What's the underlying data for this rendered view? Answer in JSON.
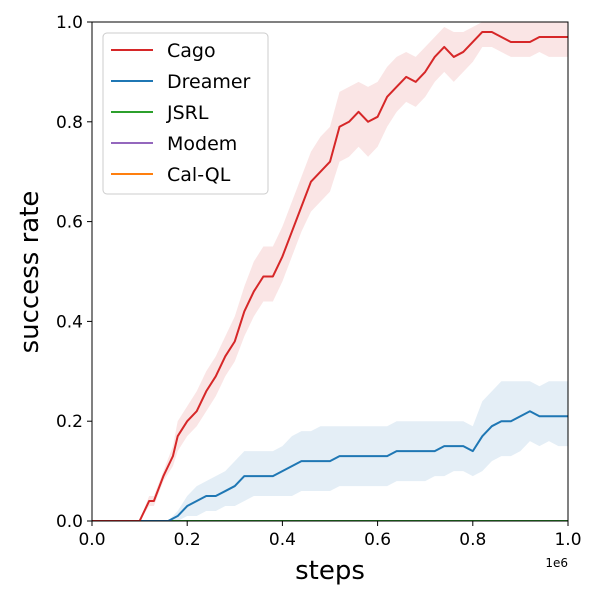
{
  "chart_data": {
    "type": "line",
    "xlabel": "steps",
    "ylabel": "success rate",
    "x_offset_label": "1e6",
    "xlim": [
      0,
      1.0
    ],
    "ylim": [
      0,
      1.0
    ],
    "xticks": [
      0.0,
      0.2,
      0.4,
      0.6,
      0.8,
      1.0
    ],
    "xtick_labels": [
      "0.0",
      "0.2",
      "0.4",
      "0.6",
      "0.8",
      "1.0"
    ],
    "yticks": [
      0.0,
      0.2,
      0.4,
      0.6,
      0.8,
      1.0
    ],
    "ytick_labels": [
      "0.0",
      "0.2",
      "0.4",
      "0.6",
      "0.8",
      "1.0"
    ],
    "grid": false,
    "legend_position": "top-left",
    "series": [
      {
        "name": "Cago",
        "color": "#d62728",
        "x": [
          0,
          0.09,
          0.1,
          0.12,
          0.13,
          0.15,
          0.17,
          0.18,
          0.2,
          0.22,
          0.24,
          0.26,
          0.28,
          0.3,
          0.32,
          0.34,
          0.36,
          0.38,
          0.4,
          0.42,
          0.44,
          0.46,
          0.48,
          0.5,
          0.52,
          0.54,
          0.56,
          0.58,
          0.6,
          0.62,
          0.64,
          0.66,
          0.68,
          0.7,
          0.72,
          0.74,
          0.76,
          0.78,
          0.8,
          0.82,
          0.84,
          0.86,
          0.88,
          0.9,
          0.92,
          0.94,
          0.96,
          0.98,
          1.0
        ],
        "values": [
          0,
          0,
          0,
          0.04,
          0.04,
          0.09,
          0.13,
          0.17,
          0.2,
          0.22,
          0.26,
          0.29,
          0.33,
          0.36,
          0.42,
          0.46,
          0.49,
          0.49,
          0.53,
          0.58,
          0.63,
          0.68,
          0.7,
          0.72,
          0.79,
          0.8,
          0.82,
          0.8,
          0.81,
          0.85,
          0.87,
          0.89,
          0.88,
          0.9,
          0.93,
          0.95,
          0.93,
          0.94,
          0.96,
          0.98,
          0.98,
          0.97,
          0.96,
          0.96,
          0.96,
          0.97,
          0.97,
          0.97,
          0.97
        ],
        "lower": [
          0,
          0,
          0,
          0.03,
          0.03,
          0.08,
          0.11,
          0.14,
          0.17,
          0.19,
          0.22,
          0.25,
          0.29,
          0.32,
          0.37,
          0.41,
          0.44,
          0.44,
          0.48,
          0.53,
          0.58,
          0.62,
          0.64,
          0.66,
          0.72,
          0.73,
          0.75,
          0.73,
          0.75,
          0.79,
          0.82,
          0.84,
          0.83,
          0.85,
          0.88,
          0.9,
          0.88,
          0.9,
          0.92,
          0.95,
          0.95,
          0.94,
          0.93,
          0.93,
          0.93,
          0.94,
          0.93,
          0.93,
          0.93
        ],
        "upper": [
          0,
          0,
          0,
          0.05,
          0.05,
          0.1,
          0.15,
          0.2,
          0.23,
          0.26,
          0.3,
          0.33,
          0.37,
          0.41,
          0.47,
          0.52,
          0.55,
          0.55,
          0.59,
          0.64,
          0.69,
          0.74,
          0.77,
          0.79,
          0.86,
          0.87,
          0.88,
          0.87,
          0.88,
          0.91,
          0.93,
          0.94,
          0.93,
          0.95,
          0.97,
          0.99,
          0.98,
          0.98,
          0.99,
          1.0,
          1.0,
          1.0,
          1.0,
          1.0,
          1.0,
          1.0,
          1.0,
          1.0,
          1.0
        ]
      },
      {
        "name": "Dreamer",
        "color": "#1f77b4",
        "x": [
          0,
          0.16,
          0.18,
          0.2,
          0.22,
          0.24,
          0.26,
          0.28,
          0.3,
          0.32,
          0.34,
          0.36,
          0.38,
          0.4,
          0.42,
          0.44,
          0.46,
          0.48,
          0.5,
          0.52,
          0.54,
          0.56,
          0.58,
          0.6,
          0.62,
          0.64,
          0.66,
          0.68,
          0.7,
          0.72,
          0.74,
          0.76,
          0.78,
          0.8,
          0.82,
          0.84,
          0.86,
          0.88,
          0.9,
          0.92,
          0.94,
          0.96,
          0.98,
          1.0
        ],
        "values": [
          0,
          0,
          0.01,
          0.03,
          0.04,
          0.05,
          0.05,
          0.06,
          0.07,
          0.09,
          0.09,
          0.09,
          0.09,
          0.1,
          0.11,
          0.12,
          0.12,
          0.12,
          0.12,
          0.13,
          0.13,
          0.13,
          0.13,
          0.13,
          0.13,
          0.14,
          0.14,
          0.14,
          0.14,
          0.14,
          0.15,
          0.15,
          0.15,
          0.14,
          0.17,
          0.19,
          0.2,
          0.2,
          0.21,
          0.22,
          0.21,
          0.21,
          0.21,
          0.21
        ],
        "lower": [
          0,
          0,
          0,
          0.01,
          0.01,
          0.02,
          0.02,
          0.03,
          0.03,
          0.04,
          0.05,
          0.05,
          0.05,
          0.05,
          0.05,
          0.06,
          0.06,
          0.06,
          0.06,
          0.07,
          0.07,
          0.07,
          0.07,
          0.07,
          0.07,
          0.08,
          0.08,
          0.08,
          0.08,
          0.09,
          0.09,
          0.1,
          0.1,
          0.09,
          0.1,
          0.12,
          0.13,
          0.13,
          0.14,
          0.16,
          0.15,
          0.16,
          0.15,
          0.15
        ],
        "upper": [
          0,
          0,
          0.02,
          0.05,
          0.07,
          0.08,
          0.09,
          0.1,
          0.12,
          0.14,
          0.14,
          0.14,
          0.14,
          0.15,
          0.17,
          0.18,
          0.18,
          0.19,
          0.19,
          0.19,
          0.19,
          0.19,
          0.19,
          0.19,
          0.19,
          0.2,
          0.2,
          0.2,
          0.2,
          0.2,
          0.2,
          0.2,
          0.2,
          0.19,
          0.24,
          0.26,
          0.28,
          0.28,
          0.28,
          0.28,
          0.27,
          0.28,
          0.28,
          0.28
        ]
      },
      {
        "name": "JSRL",
        "color": "#2ca02c",
        "x": [
          0,
          1.0
        ],
        "values": [
          0,
          0
        ]
      },
      {
        "name": "Modem",
        "color": "#9467bd",
        "x": [
          0,
          1.0
        ],
        "values": [
          0,
          0
        ]
      },
      {
        "name": "Cal-QL",
        "color": "#ff7f0e",
        "x": [
          0,
          1.0
        ],
        "values": [
          0,
          0
        ]
      }
    ]
  }
}
